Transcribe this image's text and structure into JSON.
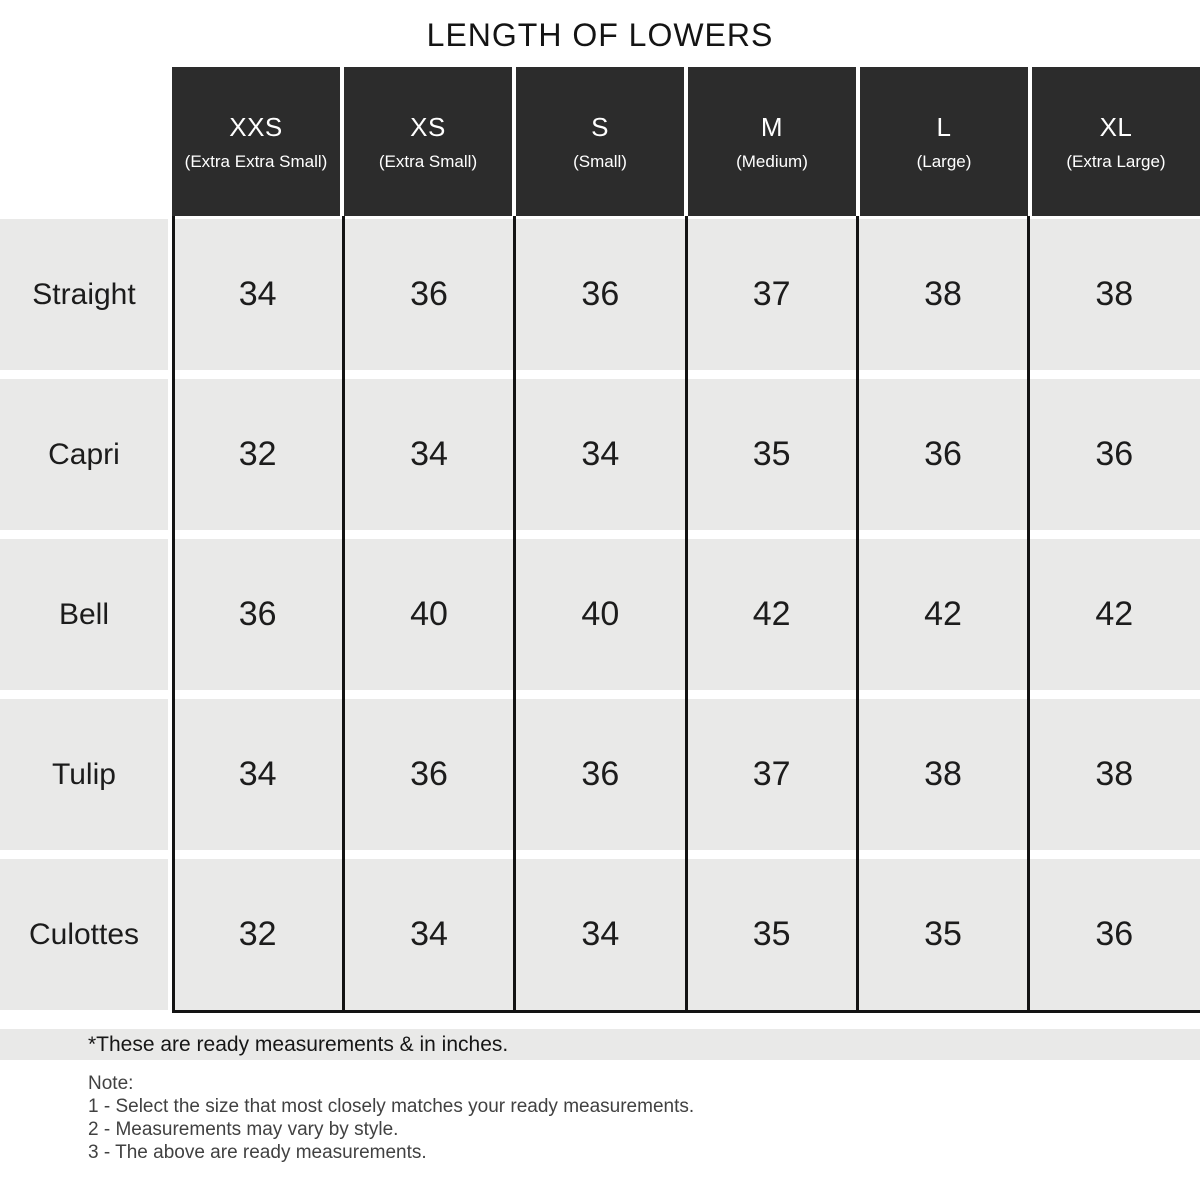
{
  "chart_data": {
    "type": "table",
    "title": "LENGTH OF LOWERS",
    "unit": "inches",
    "columns": [
      {
        "size": "XXS",
        "full": "(Extra Extra Small)"
      },
      {
        "size": "XS",
        "full": "(Extra Small)"
      },
      {
        "size": "S",
        "full": "(Small)"
      },
      {
        "size": "M",
        "full": "(Medium)"
      },
      {
        "size": "L",
        "full": "(Large)"
      },
      {
        "size": "XL",
        "full": "(Extra Large)"
      }
    ],
    "rows": [
      {
        "label": "Straight",
        "values": [
          "34",
          "36",
          "36",
          "37",
          "38",
          "38"
        ]
      },
      {
        "label": "Capri",
        "values": [
          "32",
          "34",
          "34",
          "35",
          "36",
          "36"
        ]
      },
      {
        "label": "Bell",
        "values": [
          "36",
          "40",
          "40",
          "42",
          "42",
          "42"
        ]
      },
      {
        "label": "Tulip",
        "values": [
          "34",
          "36",
          "36",
          "37",
          "38",
          "38"
        ]
      },
      {
        "label": "Culottes",
        "values": [
          "32",
          "34",
          "34",
          "35",
          "35",
          "36"
        ]
      }
    ]
  },
  "footnote": "*These are ready measurements & in inches.",
  "notes": {
    "heading": "Note:",
    "items": [
      "1 - Select the size that most closely matches your ready measurements.",
      "2 - Measurements may vary by style.",
      "3 - The above are ready measurements."
    ]
  },
  "colors": {
    "header_bg": "#2c2c2c",
    "header_text": "#ffffff",
    "row_bg": "#e9e9e8",
    "border": "#131313",
    "note_text": "#414141"
  }
}
